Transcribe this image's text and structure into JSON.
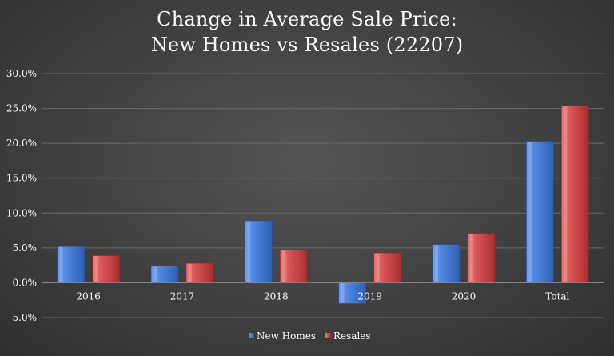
{
  "chart_data": {
    "type": "bar",
    "title_line1": "Change in Average Sale Price:",
    "title_line2": "New Homes vs Resales (22207)",
    "categories": [
      "2016",
      "2017",
      "2018",
      "2019",
      "2020",
      "Total"
    ],
    "series": [
      {
        "name": "New Homes",
        "values": [
          5.2,
          2.4,
          8.9,
          -3.0,
          5.5,
          20.3
        ],
        "color": "#4a7fd6"
      },
      {
        "name": "Resales",
        "values": [
          3.9,
          2.8,
          4.7,
          4.3,
          7.1,
          25.4
        ],
        "color": "#d64a4a"
      }
    ],
    "ylim": [
      -5,
      30
    ],
    "yticks": [
      -5,
      0,
      5,
      10,
      15,
      20,
      25,
      30
    ],
    "ytick_labels": [
      "-5.0%",
      "0.0%",
      "5.0%",
      "10.0%",
      "15.0%",
      "20.0%",
      "25.0%",
      "30.0%"
    ],
    "grid": true,
    "legend_position": "bottom"
  }
}
